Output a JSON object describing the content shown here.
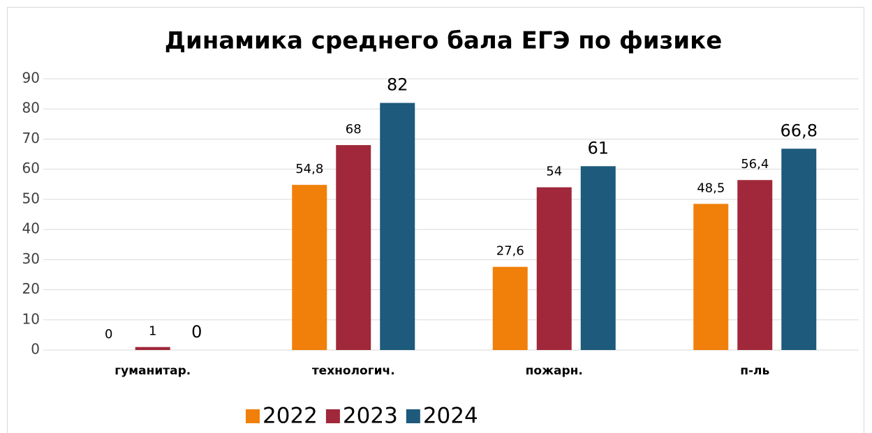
{
  "chart_data": {
    "type": "bar",
    "title": "Динамика среднего бала ЕГЭ по физике",
    "categories": [
      "гуманитар.",
      "технологич.",
      "пожарн.",
      "п-ль"
    ],
    "series": [
      {
        "name": "2022",
        "color": "#f0800a",
        "values": [
          0,
          54.8,
          27.6,
          48.5
        ],
        "value_labels": [
          "0",
          "54,8",
          "27,6",
          "48,5"
        ]
      },
      {
        "name": "2023",
        "color": "#a0283a",
        "values": [
          1,
          68,
          54,
          56.4
        ],
        "value_labels": [
          "1",
          "68",
          "54",
          "56,4"
        ]
      },
      {
        "name": "2024",
        "color": "#1d5a7c",
        "values": [
          0,
          82,
          61,
          66.8
        ],
        "value_labels": [
          "0",
          "82",
          "61",
          "66,8"
        ]
      }
    ],
    "ylim": [
      0,
      90
    ],
    "yticks": [
      0,
      10,
      20,
      30,
      40,
      50,
      60,
      70,
      80,
      90
    ],
    "grid": true,
    "legend": "bottom"
  }
}
